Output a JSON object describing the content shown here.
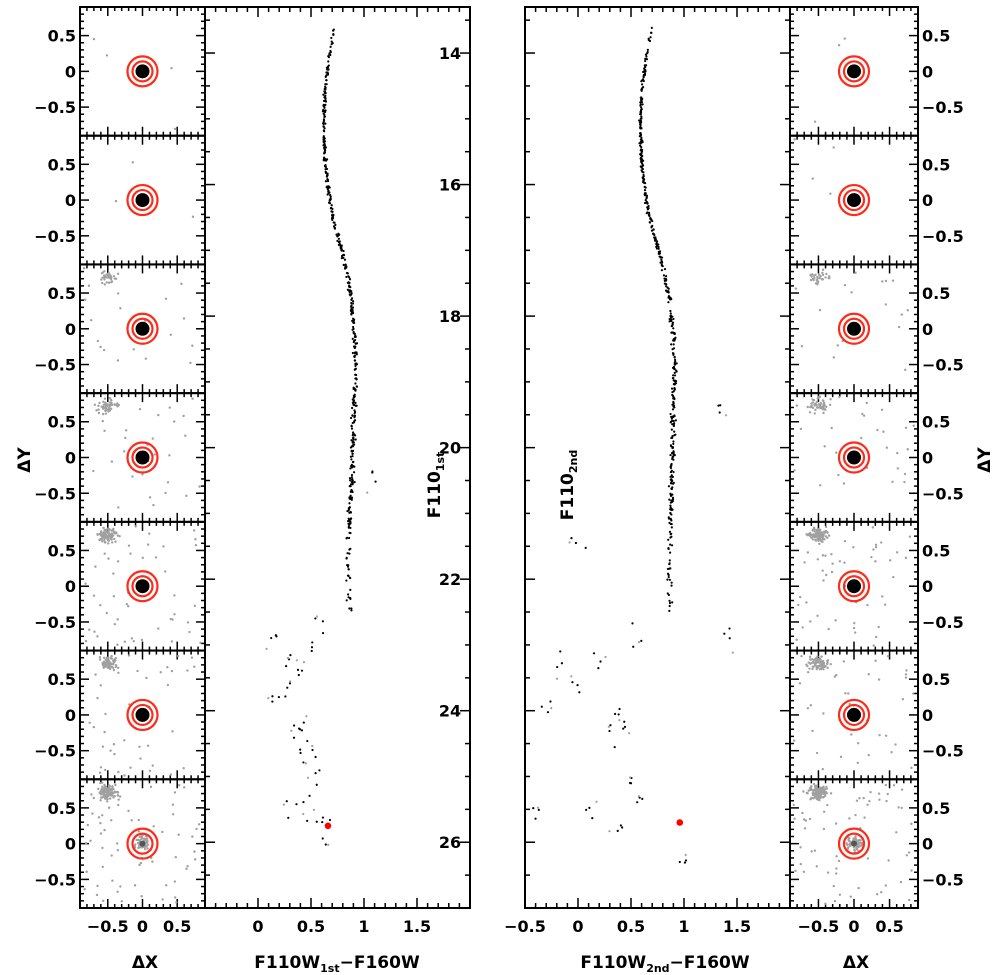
{
  "chart_data": [
    {
      "type": "scatter",
      "name": "cmd-first-epoch",
      "xlabel_main": "F110W",
      "xlabel_sub": "1st",
      "xlabel_tail": "−F160W",
      "ylabel_main": "F110",
      "ylabel_sub": "1st",
      "xlim": [
        -0.5,
        2.0
      ],
      "ylim": [
        27.0,
        13.3
      ],
      "xticks": [
        "0",
        "0.5",
        "1",
        "1.5"
      ],
      "xtick_values": [
        0,
        0.5,
        1,
        1.5
      ],
      "highlighted_star": {
        "x": 0.66,
        "y": 25.75,
        "color": "#ff0000"
      },
      "sequence_ridge": [
        [
          0.72,
          13.6
        ],
        [
          0.68,
          14.0
        ],
        [
          0.63,
          14.6
        ],
        [
          0.62,
          15.1
        ],
        [
          0.63,
          15.6
        ],
        [
          0.66,
          16.1
        ],
        [
          0.72,
          16.6
        ],
        [
          0.81,
          17.1
        ],
        [
          0.88,
          17.7
        ],
        [
          0.91,
          18.3
        ],
        [
          0.92,
          18.9
        ],
        [
          0.9,
          19.5
        ],
        [
          0.89,
          20.1
        ],
        [
          0.88,
          20.7
        ],
        [
          0.86,
          21.3
        ],
        [
          0.85,
          21.9
        ],
        [
          0.86,
          22.5
        ]
      ],
      "sparse_points": [
        [
          0.15,
          22.9
        ],
        [
          0.28,
          23.2
        ],
        [
          0.3,
          23.6
        ],
        [
          0.4,
          24.2
        ],
        [
          0.42,
          24.8
        ],
        [
          0.35,
          24.3
        ],
        [
          0.52,
          24.6
        ],
        [
          0.55,
          25.0
        ],
        [
          0.45,
          25.5
        ],
        [
          0.58,
          25.7
        ],
        [
          0.62,
          25.9
        ],
        [
          0.3,
          25.4
        ],
        [
          0.18,
          23.8
        ],
        [
          0.4,
          23.4
        ],
        [
          1.1,
          20.4
        ],
        [
          0.58,
          22.6
        ],
        [
          0.52,
          23.0
        ]
      ],
      "point_color": "#000000",
      "faint_color": "#a0a0a0"
    },
    {
      "type": "scatter",
      "name": "cmd-second-epoch",
      "xlabel_main": "F110W",
      "xlabel_sub": "2nd",
      "xlabel_tail": "−F160W",
      "ylabel_main": "F110",
      "ylabel_sub": "2nd",
      "xlim": [
        -0.5,
        2.0
      ],
      "ylim": [
        27.0,
        13.3
      ],
      "xticks": [
        "−0.5",
        "0",
        "0.5",
        "1",
        "1.5"
      ],
      "xtick_values": [
        -0.5,
        0,
        0.5,
        1,
        1.5
      ],
      "yticks": [
        "14",
        "16",
        "18",
        "20",
        "22",
        "24",
        "26"
      ],
      "ytick_values": [
        14,
        16,
        18,
        20,
        22,
        24,
        26
      ],
      "highlighted_star": {
        "x": 0.96,
        "y": 25.7,
        "color": "#ff0000"
      },
      "sequence_ridge": [
        [
          0.7,
          13.6
        ],
        [
          0.65,
          14.0
        ],
        [
          0.6,
          14.6
        ],
        [
          0.59,
          15.1
        ],
        [
          0.6,
          15.6
        ],
        [
          0.63,
          16.1
        ],
        [
          0.69,
          16.6
        ],
        [
          0.78,
          17.1
        ],
        [
          0.86,
          17.7
        ],
        [
          0.9,
          18.3
        ],
        [
          0.91,
          18.9
        ],
        [
          0.9,
          19.5
        ],
        [
          0.89,
          20.1
        ],
        [
          0.88,
          20.7
        ],
        [
          0.87,
          21.3
        ],
        [
          0.86,
          21.9
        ],
        [
          0.87,
          22.5
        ]
      ],
      "sparse_points": [
        [
          -0.2,
          23.2
        ],
        [
          -0.05,
          23.5
        ],
        [
          0.2,
          23.3
        ],
        [
          0.35,
          24.0
        ],
        [
          0.3,
          24.4
        ],
        [
          0.45,
          24.2
        ],
        [
          0.5,
          25.0
        ],
        [
          0.6,
          25.3
        ],
        [
          -0.3,
          24.0
        ],
        [
          0.1,
          25.5
        ],
        [
          0.4,
          25.8
        ],
        [
          0.55,
          22.9
        ],
        [
          1.35,
          19.3
        ],
        [
          1.4,
          22.9
        ],
        [
          0.0,
          21.5
        ],
        [
          -0.4,
          25.5
        ],
        [
          1.0,
          26.2
        ]
      ],
      "point_color": "#000000",
      "faint_color": "#a0a0a0"
    },
    {
      "type": "scatter",
      "name": "stamp-panels",
      "xlabel": "ΔX",
      "ylabel": "ΔY",
      "xlim": [
        -0.9,
        0.9
      ],
      "ylim": [
        -0.9,
        0.9
      ],
      "xticks": [
        "−0.5",
        "0",
        "0.5"
      ],
      "yticks": [
        "0.5",
        "0",
        "−0.5"
      ],
      "xtick_values": [
        -0.5,
        0,
        0.5
      ],
      "ytick_values": [
        0.5,
        0,
        -0.5
      ],
      "rows": 7,
      "ring_color": "#ff2a1a",
      "neighbor_color": "#a0a0a0",
      "left_crowding": [
        0.0,
        0.0,
        0.25,
        0.45,
        0.75,
        0.6,
        1.0
      ],
      "right_crowding": [
        0.0,
        0.0,
        0.25,
        0.45,
        0.75,
        0.6,
        1.0
      ]
    }
  ]
}
